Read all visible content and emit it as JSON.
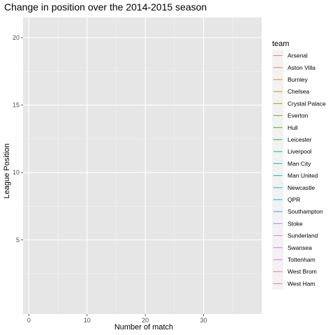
{
  "chart_data": {
    "type": "line",
    "title": "Change in position over the 2014-2015 season",
    "xlabel": "Number of match",
    "ylabel": "League Position",
    "xlim": [
      -1,
      40
    ],
    "ylim": [
      -0.5,
      21.5
    ],
    "x_ticks": [
      0,
      10,
      20,
      30
    ],
    "y_ticks": [
      5,
      10,
      15,
      20
    ],
    "grid": true,
    "legend_position": "right",
    "legend_title": "team",
    "series": [
      {
        "name": "Arsenal",
        "color": "#F8766D",
        "values": []
      },
      {
        "name": "Aston Villa",
        "color": "#EA8331",
        "values": []
      },
      {
        "name": "Burnley",
        "color": "#D89000",
        "values": []
      },
      {
        "name": "Chelsea",
        "color": "#C09B00",
        "values": []
      },
      {
        "name": "Crystal Palace",
        "color": "#A3A500",
        "values": []
      },
      {
        "name": "Everton",
        "color": "#7CAE00",
        "values": []
      },
      {
        "name": "Hull",
        "color": "#39B600",
        "values": []
      },
      {
        "name": "Leicester",
        "color": "#00BB4E",
        "values": []
      },
      {
        "name": "Liverpool",
        "color": "#00BF7D",
        "values": []
      },
      {
        "name": "Man City",
        "color": "#00C1A3",
        "values": []
      },
      {
        "name": "Man United",
        "color": "#00BFC4",
        "values": []
      },
      {
        "name": "Newcastle",
        "color": "#00BAE0",
        "values": []
      },
      {
        "name": "QPR",
        "color": "#00B0F6",
        "values": []
      },
      {
        "name": "Southampton",
        "color": "#35A2FF",
        "values": []
      },
      {
        "name": "Stoke",
        "color": "#9590FF",
        "values": []
      },
      {
        "name": "Sunderland",
        "color": "#C77CFF",
        "values": []
      },
      {
        "name": "Swansea",
        "color": "#E76BF3",
        "values": []
      },
      {
        "name": "Tottenham",
        "color": "#FA62DB",
        "values": []
      },
      {
        "name": "West Brom",
        "color": "#FF62BC",
        "values": []
      },
      {
        "name": "West Ham",
        "color": "#FF6C91",
        "values": []
      }
    ],
    "colors": {
      "panel_background": "#E6E6E6",
      "grid_major": "#FFFFFF",
      "grid_minor": "#F2F2F2",
      "legend_key_background": "#F2F2F2",
      "tick_mark": "#333333"
    }
  }
}
